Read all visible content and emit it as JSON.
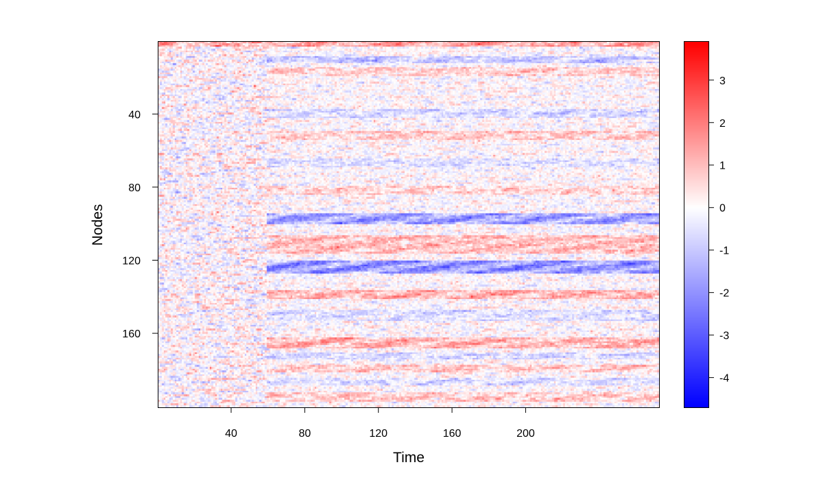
{
  "chart_data": {
    "type": "heatmap",
    "title": "",
    "xlabel": "Time",
    "ylabel": "Nodes",
    "x_range": [
      1,
      272
    ],
    "y_range": [
      1,
      200
    ],
    "x_ticks": [
      40,
      80,
      120,
      160,
      200
    ],
    "y_ticks": [
      40,
      80,
      120,
      160
    ],
    "y_axis_reversed": true,
    "colorbar": {
      "range": [
        -4.7,
        3.9
      ],
      "ticks": [
        3,
        2,
        1,
        0,
        -1,
        -2,
        -3,
        -4
      ],
      "tick_labels": [
        "3",
        "2",
        "1",
        "0",
        "-1",
        "-2",
        "-3",
        "-4"
      ],
      "low_color": "#0000ff",
      "mid_color": "#ffffff",
      "high_color": "#ff0000"
    },
    "row_bands": [
      {
        "nodes": [
          1,
          3
        ],
        "mean": 1.8,
        "from_time": 1
      },
      {
        "nodes": [
          9,
          12
        ],
        "mean": -1.4,
        "from_time": 60
      },
      {
        "nodes": [
          15,
          19
        ],
        "mean": 0.9,
        "from_time": 60
      },
      {
        "nodes": [
          38,
          42
        ],
        "mean": -0.9,
        "from_time": 60
      },
      {
        "nodes": [
          50,
          54
        ],
        "mean": 1.0,
        "from_time": 60
      },
      {
        "nodes": [
          65,
          69
        ],
        "mean": -0.7,
        "from_time": 60
      },
      {
        "nodes": [
          80,
          84
        ],
        "mean": 0.8,
        "from_time": 60
      },
      {
        "nodes": [
          95,
          100
        ],
        "mean": -2.3,
        "from_time": 60
      },
      {
        "nodes": [
          107,
          116
        ],
        "mean": 1.3,
        "from_time": 60
      },
      {
        "nodes": [
          121,
          127
        ],
        "mean": -2.6,
        "from_time": 60
      },
      {
        "nodes": [
          137,
          141
        ],
        "mean": 1.5,
        "from_time": 60
      },
      {
        "nodes": [
          148,
          153
        ],
        "mean": -0.8,
        "from_time": 60
      },
      {
        "nodes": [
          163,
          168
        ],
        "mean": 1.5,
        "from_time": 60
      },
      {
        "nodes": [
          171,
          174
        ],
        "mean": -0.9,
        "from_time": 60
      },
      {
        "nodes": [
          178,
          181
        ],
        "mean": 1.0,
        "from_time": 60
      },
      {
        "nodes": [
          185,
          188
        ],
        "mean": -0.8,
        "from_time": 60
      },
      {
        "nodes": [
          193,
          197
        ],
        "mean": 1.0,
        "from_time": 60
      }
    ]
  }
}
